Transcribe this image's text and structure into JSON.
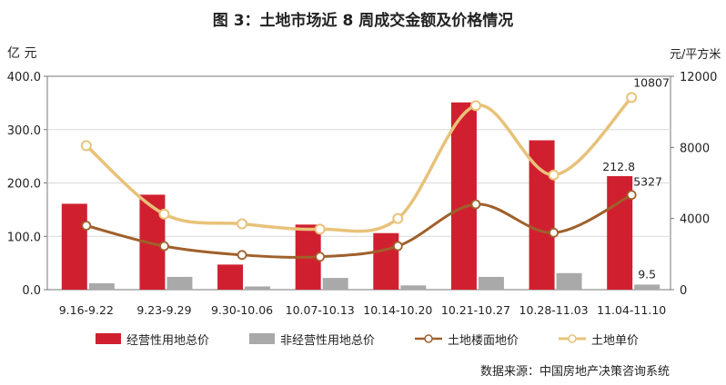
{
  "title": "图 3：土地市场近 8 周成交金额及价格情况",
  "left_unit": "亿 元",
  "right_unit": "元/平方米",
  "source": "数据来源：中国房地产决策咨询系统",
  "colors": {
    "operating_bar": "#d0202f",
    "nonoperating_bar": "#a9a9a9",
    "floor_price_line": "#a0602b",
    "unit_price_line": "#e8c27a"
  },
  "legend": [
    {
      "key": "operating",
      "label": "经营性用地总价"
    },
    {
      "key": "nonoperating",
      "label": "非经营性用地总价"
    },
    {
      "key": "floor",
      "label": "土地楼面地价"
    },
    {
      "key": "unit",
      "label": "土地单价"
    }
  ],
  "chart_data": {
    "type": "bar",
    "categories": [
      "9.16-9.22",
      "9.23-9.29",
      "9.30-10.06",
      "10.07-10.13",
      "10.14-10.20",
      "10.21-10.27",
      "10.28-11.03",
      "11.04-11.10"
    ],
    "left_axis": {
      "ylim": [
        0,
        400
      ],
      "ticks": [
        "0.0",
        "100.0",
        "200.0",
        "300.0",
        "400.0"
      ]
    },
    "right_axis": {
      "ylim": [
        0,
        12000
      ],
      "ticks": [
        "0",
        "4000",
        "8000",
        "12000"
      ]
    },
    "series": [
      {
        "name": "经营性用地总价",
        "type": "bar",
        "axis": "left",
        "values": [
          161,
          178,
          47,
          122,
          106,
          351,
          280,
          212.8
        ]
      },
      {
        "name": "非经营性用地总价",
        "type": "bar",
        "axis": "left",
        "values": [
          12,
          24,
          6,
          22,
          8,
          24,
          31,
          9.5
        ]
      },
      {
        "name": "土地楼面地价",
        "type": "line",
        "axis": "right",
        "values": [
          3600,
          2450,
          1950,
          1850,
          2450,
          4800,
          3200,
          5327
        ]
      },
      {
        "name": "土地单价",
        "type": "line",
        "axis": "right",
        "smooth": true,
        "values": [
          8100,
          4250,
          3700,
          3400,
          4000,
          10350,
          6450,
          10807
        ]
      }
    ],
    "data_labels": [
      {
        "series": "经营性用地总价",
        "index": 7,
        "text": "212.8"
      },
      {
        "series": "非经营性用地总价",
        "index": 7,
        "text": "9.5"
      },
      {
        "series": "土地楼面地价",
        "index": 7,
        "text": "5327"
      },
      {
        "series": "土地单价",
        "index": 7,
        "text": "10807"
      }
    ],
    "grid": true,
    "legend_position": "bottom"
  }
}
